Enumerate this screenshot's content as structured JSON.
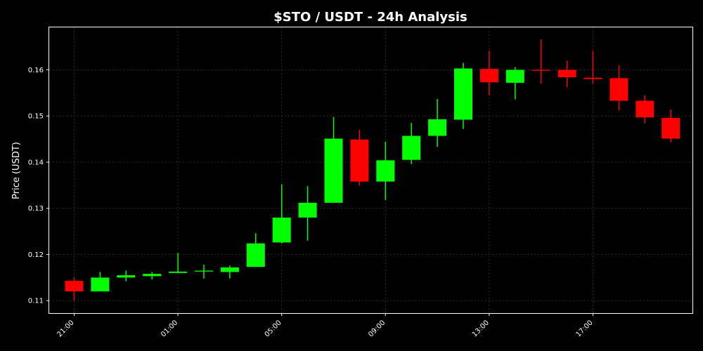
{
  "chart_data": {
    "type": "candlestick",
    "title": "$STO / USDT - 24h Analysis",
    "xlabel": "",
    "ylabel": "Price (USDT)",
    "ylim": [
      0.1073,
      0.1692
    ],
    "y_ticks": [
      "0.11",
      "0.12",
      "0.13",
      "0.14",
      "0.15",
      "0.16"
    ],
    "y_tick_values": [
      0.11,
      0.12,
      0.13,
      0.14,
      0.15,
      0.16
    ],
    "x_ticks": [
      "21:00",
      "01:00",
      "05:00",
      "09:00",
      "13:00",
      "17:00"
    ],
    "x_tick_index": [
      0,
      4,
      8,
      12,
      16,
      20
    ],
    "grid": true,
    "up_color": "#00ff00",
    "down_color": "#ff0000",
    "background": "#000000",
    "candles": [
      {
        "time": "21:00",
        "open": 0.1143,
        "high": 0.115,
        "low": 0.11,
        "close": 0.112
      },
      {
        "time": "22:00",
        "open": 0.112,
        "high": 0.1162,
        "low": 0.112,
        "close": 0.115
      },
      {
        "time": "23:00",
        "open": 0.115,
        "high": 0.1165,
        "low": 0.1142,
        "close": 0.1155
      },
      {
        "time": "00:00",
        "open": 0.1153,
        "high": 0.1162,
        "low": 0.1146,
        "close": 0.1158
      },
      {
        "time": "01:00",
        "open": 0.116,
        "high": 0.1203,
        "low": 0.116,
        "close": 0.1163
      },
      {
        "time": "02:00",
        "open": 0.1163,
        "high": 0.1178,
        "low": 0.1148,
        "close": 0.1165
      },
      {
        "time": "03:00",
        "open": 0.1162,
        "high": 0.1176,
        "low": 0.1148,
        "close": 0.1172
      },
      {
        "time": "04:00",
        "open": 0.1173,
        "high": 0.1246,
        "low": 0.1173,
        "close": 0.1224
      },
      {
        "time": "05:00",
        "open": 0.1226,
        "high": 0.1352,
        "low": 0.1224,
        "close": 0.128
      },
      {
        "time": "06:00",
        "open": 0.128,
        "high": 0.1348,
        "low": 0.123,
        "close": 0.1312
      },
      {
        "time": "07:00",
        "open": 0.1312,
        "high": 0.1498,
        "low": 0.1312,
        "close": 0.1451
      },
      {
        "time": "08:00",
        "open": 0.1449,
        "high": 0.147,
        "low": 0.1349,
        "close": 0.1358
      },
      {
        "time": "09:00",
        "open": 0.1358,
        "high": 0.1444,
        "low": 0.1318,
        "close": 0.1404
      },
      {
        "time": "10:00",
        "open": 0.1405,
        "high": 0.1485,
        "low": 0.1396,
        "close": 0.1457
      },
      {
        "time": "11:00",
        "open": 0.1457,
        "high": 0.1537,
        "low": 0.1433,
        "close": 0.1493
      },
      {
        "time": "12:00",
        "open": 0.1492,
        "high": 0.1615,
        "low": 0.1472,
        "close": 0.1603
      },
      {
        "time": "13:00",
        "open": 0.1602,
        "high": 0.1641,
        "low": 0.1545,
        "close": 0.1573
      },
      {
        "time": "14:00",
        "open": 0.1572,
        "high": 0.1606,
        "low": 0.1536,
        "close": 0.16
      },
      {
        "time": "15:00",
        "open": 0.16,
        "high": 0.1666,
        "low": 0.157,
        "close": 0.1598
      },
      {
        "time": "16:00",
        "open": 0.16,
        "high": 0.162,
        "low": 0.1562,
        "close": 0.1584
      },
      {
        "time": "17:00",
        "open": 0.1583,
        "high": 0.1641,
        "low": 0.157,
        "close": 0.158
      },
      {
        "time": "18:00",
        "open": 0.1582,
        "high": 0.161,
        "low": 0.1512,
        "close": 0.1533
      },
      {
        "time": "19:00",
        "open": 0.1533,
        "high": 0.1545,
        "low": 0.1484,
        "close": 0.1497
      },
      {
        "time": "20:00",
        "open": 0.1496,
        "high": 0.1514,
        "low": 0.1443,
        "close": 0.1451
      }
    ]
  }
}
